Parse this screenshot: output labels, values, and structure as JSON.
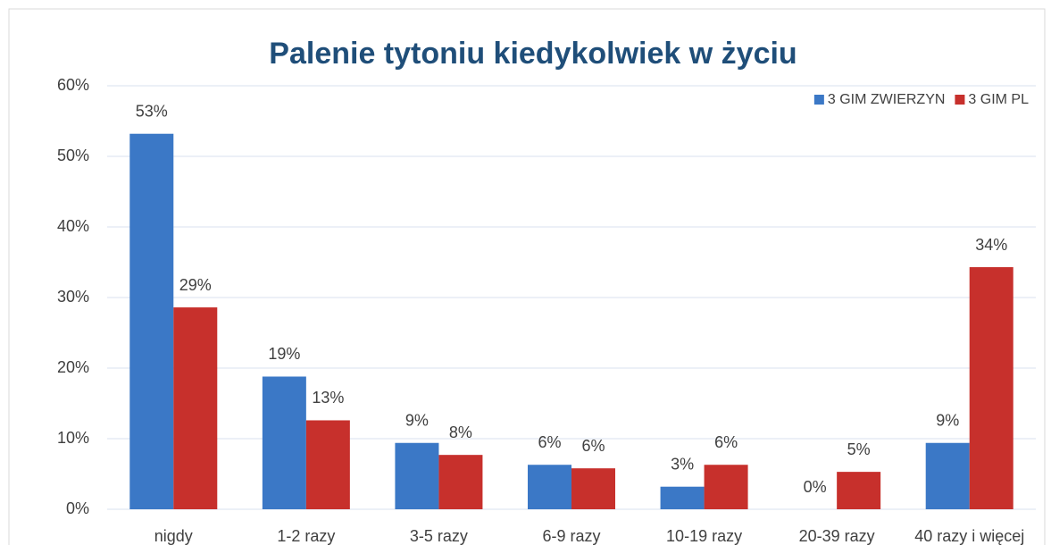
{
  "chart_data": {
    "type": "bar",
    "title": "Palenie tytoniu kiedykolwiek w życiu",
    "categories": [
      "nigdy",
      "1-2 razy",
      "3-5 razy",
      "6-9 razy",
      "10-19 razy",
      "20-39 razy",
      "40 razy i więcej"
    ],
    "series": [
      {
        "name": "3 GIM ZWIERZYN",
        "color": "#3b78c6",
        "values": [
          53.2,
          18.8,
          9.4,
          6.3,
          3.2,
          0,
          9.4
        ],
        "value_labels": [
          "53%",
          "19%",
          "9%",
          "6%",
          "3%",
          "0%",
          "9%"
        ]
      },
      {
        "name": "3 GIM PL",
        "color": "#c7302c",
        "values": [
          28.6,
          12.6,
          7.7,
          5.8,
          6.3,
          5.3,
          34.3
        ],
        "value_labels": [
          "29%",
          "13%",
          "8%",
          "6%",
          "6%",
          "5%",
          "34%"
        ]
      }
    ],
    "ylim": [
      0,
      60
    ],
    "yticks": [
      {
        "value": 0,
        "label": "0%"
      },
      {
        "value": 10,
        "label": "10%"
      },
      {
        "value": 20,
        "label": "20%"
      },
      {
        "value": 30,
        "label": "30%"
      },
      {
        "value": 40,
        "label": "40%"
      },
      {
        "value": 50,
        "label": "50%"
      },
      {
        "value": 60,
        "label": "60%"
      }
    ],
    "grid": true,
    "legend": "top-right"
  }
}
